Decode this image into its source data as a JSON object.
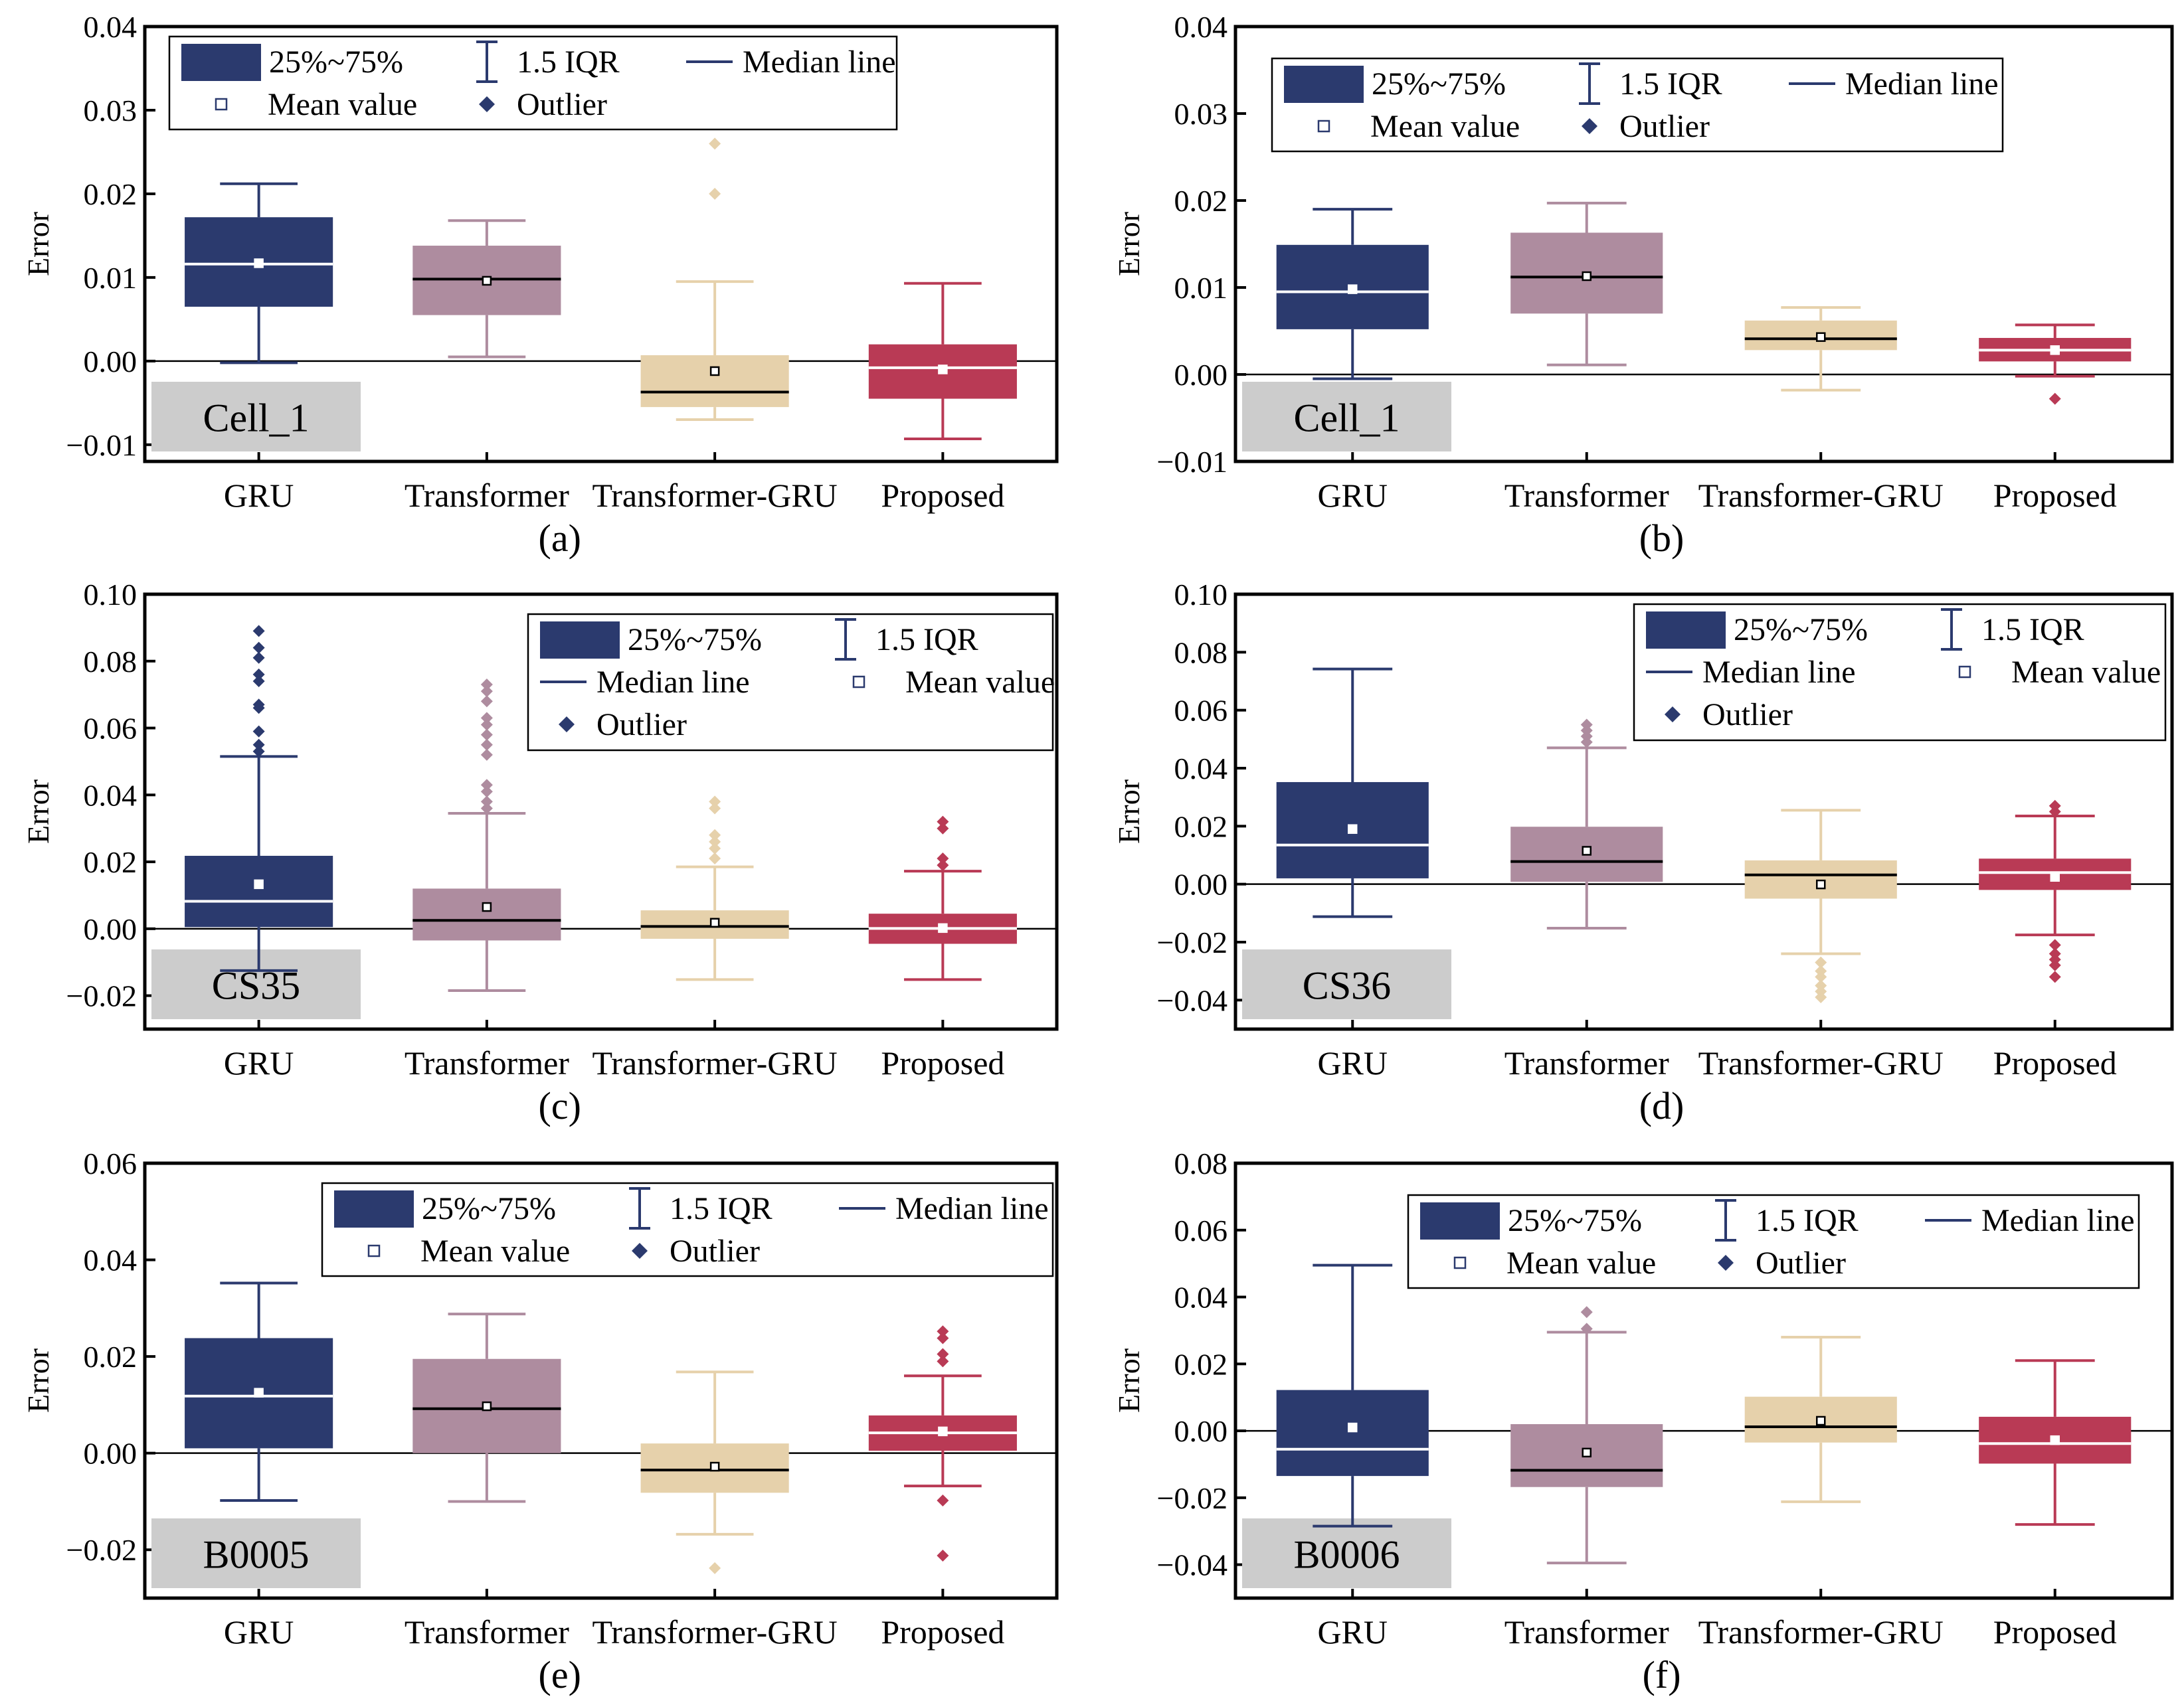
{
  "figure": {
    "colors": {
      "GRU": "#2b3a6e",
      "Transformer": "#ae8c9f",
      "Transformer-GRU": "#e6d1ab",
      "Proposed": "#b93a55",
      "dataset_box": "#cccccc",
      "axis": "#000000",
      "legend_navy": "#2b3a6e"
    }
  },
  "chart_data": [
    {
      "type": "box",
      "panel_label": "(a)",
      "dataset_tag": "Cell_1",
      "ylabel": "Error",
      "ylim": [
        -0.012,
        0.04
      ],
      "yticks": [
        "-0.01",
        "0.00",
        "0.01",
        "0.02",
        "0.03",
        "0.04"
      ],
      "yticks_values": [
        -0.01,
        0.0,
        0.01,
        0.02,
        0.03,
        0.04
      ],
      "legend": {
        "position": "top-left",
        "items": [
          "25%~75%",
          "1.5 IQR",
          "Median line",
          "Mean value",
          "Outlier"
        ],
        "rows": [
          [
            "25%~75%",
            "1.5 IQR",
            "Median line"
          ],
          [
            "Mean value",
            "Outlier"
          ]
        ]
      },
      "categories": [
        "GRU",
        "Transformer",
        "Transformer-GRU",
        "Proposed"
      ],
      "series": [
        {
          "name": "GRU",
          "q1": 0.0065,
          "q3": 0.0172,
          "median": 0.0116,
          "mean": 0.0117,
          "whisker_low": -0.0002,
          "whisker_high": 0.0212,
          "outliers": []
        },
        {
          "name": "Transformer",
          "q1": 0.0055,
          "q3": 0.0138,
          "median": 0.0098,
          "mean": 0.0096,
          "whisker_low": 0.0005,
          "whisker_high": 0.0168,
          "outliers": []
        },
        {
          "name": "Transformer-GRU",
          "q1": -0.0055,
          "q3": 0.0007,
          "median": -0.0037,
          "mean": -0.0012,
          "whisker_low": -0.007,
          "whisker_high": 0.0095,
          "outliers": [
            0.02,
            0.026
          ]
        },
        {
          "name": "Proposed",
          "q1": -0.0045,
          "q3": 0.002,
          "median": -0.0008,
          "mean": -0.001,
          "whisker_low": -0.0093,
          "whisker_high": 0.0093,
          "outliers": []
        }
      ]
    },
    {
      "type": "box",
      "panel_label": "(b)",
      "dataset_tag": "Cell_1",
      "ylabel": "Error",
      "ylim": [
        -0.01,
        0.04
      ],
      "yticks": [
        "-0.01",
        "0.00",
        "0.01",
        "0.02",
        "0.03",
        "0.04"
      ],
      "yticks_values": [
        -0.01,
        0.0,
        0.01,
        0.02,
        0.03,
        0.04
      ],
      "legend": {
        "position": "top-center",
        "items": [
          "25%~75%",
          "1.5 IQR",
          "Median line",
          "Mean value",
          "Outlier"
        ],
        "rows": [
          [
            "25%~75%",
            "1.5 IQR",
            "Median line"
          ],
          [
            "Mean value",
            "Outlier"
          ]
        ]
      },
      "categories": [
        "GRU",
        "Transformer",
        "Transformer-GRU",
        "Proposed"
      ],
      "series": [
        {
          "name": "GRU",
          "q1": 0.0052,
          "q3": 0.0149,
          "median": 0.0095,
          "mean": 0.0098,
          "whisker_low": -0.0005,
          "whisker_high": 0.019,
          "outliers": []
        },
        {
          "name": "Transformer",
          "q1": 0.007,
          "q3": 0.0163,
          "median": 0.0112,
          "mean": 0.0113,
          "whisker_low": 0.0011,
          "whisker_high": 0.0197,
          "outliers": []
        },
        {
          "name": "Transformer-GRU",
          "q1": 0.0028,
          "q3": 0.0062,
          "median": 0.0041,
          "mean": 0.0043,
          "whisker_low": -0.0018,
          "whisker_high": 0.0077,
          "outliers": []
        },
        {
          "name": "Proposed",
          "q1": 0.0015,
          "q3": 0.0042,
          "median": 0.0028,
          "mean": 0.0028,
          "whisker_low": -0.0002,
          "whisker_high": 0.0057,
          "outliers": [
            -0.0028
          ]
        }
      ]
    },
    {
      "type": "box",
      "panel_label": "(c)",
      "dataset_tag": "CS35",
      "ylabel": "Error",
      "ylim": [
        -0.03,
        0.1
      ],
      "yticks": [
        "-0.02",
        "0.00",
        "0.02",
        "0.04",
        "0.06",
        "0.08",
        "0.10"
      ],
      "yticks_values": [
        -0.02,
        0.0,
        0.02,
        0.04,
        0.06,
        0.08,
        0.1
      ],
      "legend": {
        "position": "top-right",
        "items": [
          "25%~75%",
          "1.5 IQR",
          "Median line",
          "Mean value",
          "Outlier"
        ],
        "rows": [
          [
            "25%~75%",
            "1.5 IQR"
          ],
          [
            "Median line",
            "Mean value"
          ],
          [
            "Outlier"
          ]
        ]
      },
      "categories": [
        "GRU",
        "Transformer",
        "Transformer-GRU",
        "Proposed"
      ],
      "series": [
        {
          "name": "GRU",
          "q1": 0.0005,
          "q3": 0.0218,
          "median": 0.0082,
          "mean": 0.0133,
          "whisker_low": -0.0125,
          "whisker_high": 0.0515,
          "outliers": [
            0.053,
            0.055,
            0.059,
            0.066,
            0.067,
            0.074,
            0.076,
            0.081,
            0.084,
            0.089
          ]
        },
        {
          "name": "Transformer",
          "q1": -0.0035,
          "q3": 0.012,
          "median": 0.0025,
          "mean": 0.0065,
          "whisker_low": -0.0185,
          "whisker_high": 0.0345,
          "outliers": [
            0.036,
            0.038,
            0.041,
            0.043,
            0.052,
            0.055,
            0.058,
            0.061,
            0.063,
            0.068,
            0.071,
            0.073
          ]
        },
        {
          "name": "Transformer-GRU",
          "q1": -0.003,
          "q3": 0.0055,
          "median": 0.0007,
          "mean": 0.0018,
          "whisker_low": -0.0152,
          "whisker_high": 0.0185,
          "outliers": [
            0.021,
            0.024,
            0.026,
            0.028,
            0.036,
            0.038
          ]
        },
        {
          "name": "Proposed",
          "q1": -0.0045,
          "q3": 0.0045,
          "median": 0.0001,
          "mean": 0.0002,
          "whisker_low": -0.0152,
          "whisker_high": 0.0172,
          "outliers": [
            0.019,
            0.021,
            0.03,
            0.032
          ]
        }
      ]
    },
    {
      "type": "box",
      "panel_label": "(d)",
      "dataset_tag": "CS36",
      "ylabel": "Error",
      "ylim": [
        -0.05,
        0.1
      ],
      "yticks": [
        "-0.04",
        "-0.02",
        "0.00",
        "0.02",
        "0.04",
        "0.06",
        "0.08",
        "0.10"
      ],
      "yticks_values": [
        -0.04,
        -0.02,
        0.0,
        0.02,
        0.04,
        0.06,
        0.08,
        0.1
      ],
      "legend": {
        "position": "top-right",
        "items": [
          "25%~75%",
          "1.5 IQR",
          "Median line",
          "Mean value",
          "Outlier"
        ],
        "rows": [
          [
            "25%~75%",
            "1.5 IQR"
          ],
          [
            "Median line",
            "Mean value"
          ],
          [
            "Outlier"
          ]
        ]
      },
      "categories": [
        "GRU",
        "Transformer",
        "Transformer-GRU",
        "Proposed"
      ],
      "series": [
        {
          "name": "GRU",
          "q1": 0.002,
          "q3": 0.0352,
          "median": 0.0135,
          "mean": 0.019,
          "whisker_low": -0.0112,
          "whisker_high": 0.0742,
          "outliers": []
        },
        {
          "name": "Transformer",
          "q1": 0.0008,
          "q3": 0.0198,
          "median": 0.0078,
          "mean": 0.0115,
          "whisker_low": -0.0152,
          "whisker_high": 0.047,
          "outliers": [
            0.049,
            0.051,
            0.053,
            0.055
          ]
        },
        {
          "name": "Transformer-GRU",
          "q1": -0.005,
          "q3": 0.0082,
          "median": 0.0032,
          "mean": -0.0001,
          "whisker_low": -0.024,
          "whisker_high": 0.0255,
          "outliers": [
            -0.027,
            -0.03,
            -0.032,
            -0.035,
            -0.037,
            -0.039
          ]
        },
        {
          "name": "Proposed",
          "q1": -0.002,
          "q3": 0.0088,
          "median": 0.004,
          "mean": 0.0025,
          "whisker_low": -0.0175,
          "whisker_high": 0.0235,
          "outliers": [
            -0.021,
            -0.024,
            -0.026,
            -0.028,
            -0.032,
            0.025,
            0.027
          ]
        }
      ]
    },
    {
      "type": "box",
      "panel_label": "(e)",
      "dataset_tag": "B0005",
      "ylabel": "Error",
      "ylim": [
        -0.03,
        0.06
      ],
      "yticks": [
        "-0.02",
        "0.00",
        "0.02",
        "0.04",
        "0.06"
      ],
      "yticks_values": [
        -0.02,
        0.0,
        0.02,
        0.04,
        0.06
      ],
      "legend": {
        "position": "top-right",
        "items": [
          "25%~75%",
          "1.5 IQR",
          "Median line",
          "Mean value",
          "Outlier"
        ],
        "rows": [
          [
            "25%~75%",
            "1.5 IQR",
            "Median line"
          ],
          [
            "Mean value",
            "Outlier"
          ]
        ]
      },
      "categories": [
        "GRU",
        "Transformer",
        "Transformer-GRU",
        "Proposed"
      ],
      "series": [
        {
          "name": "GRU",
          "q1": 0.001,
          "q3": 0.0238,
          "median": 0.0118,
          "mean": 0.0125,
          "whisker_low": -0.0098,
          "whisker_high": 0.0352,
          "outliers": []
        },
        {
          "name": "Transformer",
          "q1": 0.0,
          "q3": 0.0195,
          "median": 0.0092,
          "mean": 0.0097,
          "whisker_low": -0.01,
          "whisker_high": 0.0288,
          "outliers": []
        },
        {
          "name": "Transformer-GRU",
          "q1": -0.0082,
          "q3": 0.002,
          "median": -0.0035,
          "mean": -0.0028,
          "whisker_low": -0.0168,
          "whisker_high": 0.0168,
          "outliers": [
            -0.0238
          ]
        },
        {
          "name": "Proposed",
          "q1": 0.0005,
          "q3": 0.0078,
          "median": 0.0042,
          "mean": 0.0045,
          "whisker_low": -0.0068,
          "whisker_high": 0.016,
          "outliers": [
            -0.0098,
            -0.0212,
            0.019,
            0.0205,
            0.0238,
            0.0252
          ]
        }
      ]
    },
    {
      "type": "box",
      "panel_label": "(f)",
      "dataset_tag": "B0006",
      "ylabel": "Error",
      "ylim": [
        -0.05,
        0.08
      ],
      "yticks": [
        "-0.04",
        "-0.02",
        "0.00",
        "0.02",
        "0.04",
        "0.06",
        "0.08"
      ],
      "yticks_values": [
        -0.04,
        -0.02,
        0.0,
        0.02,
        0.04,
        0.06,
        0.08
      ],
      "legend": {
        "position": "top-right",
        "items": [
          "25%~75%",
          "1.5 IQR",
          "Median line",
          "Mean value",
          "Outlier"
        ],
        "rows": [
          [
            "25%~75%",
            "1.5 IQR",
            "Median line"
          ],
          [
            "Mean value",
            "Outlier"
          ]
        ]
      },
      "categories": [
        "GRU",
        "Transformer",
        "Transformer-GRU",
        "Proposed"
      ],
      "series": [
        {
          "name": "GRU",
          "q1": -0.0135,
          "q3": 0.0122,
          "median": -0.0055,
          "mean": 0.001,
          "whisker_low": -0.0285,
          "whisker_high": 0.0495,
          "outliers": []
        },
        {
          "name": "Transformer",
          "q1": -0.0168,
          "q3": 0.002,
          "median": -0.0118,
          "mean": -0.0065,
          "whisker_low": -0.0395,
          "whisker_high": 0.0295,
          "outliers": [
            0.0305,
            0.0355
          ]
        },
        {
          "name": "Transformer-GRU",
          "q1": -0.0035,
          "q3": 0.0102,
          "median": 0.0012,
          "mean": 0.003,
          "whisker_low": -0.0212,
          "whisker_high": 0.028,
          "outliers": []
        },
        {
          "name": "Proposed",
          "q1": -0.0098,
          "q3": 0.0042,
          "median": -0.0038,
          "mean": -0.0028,
          "whisker_low": -0.028,
          "whisker_high": 0.021,
          "outliers": []
        }
      ]
    }
  ]
}
